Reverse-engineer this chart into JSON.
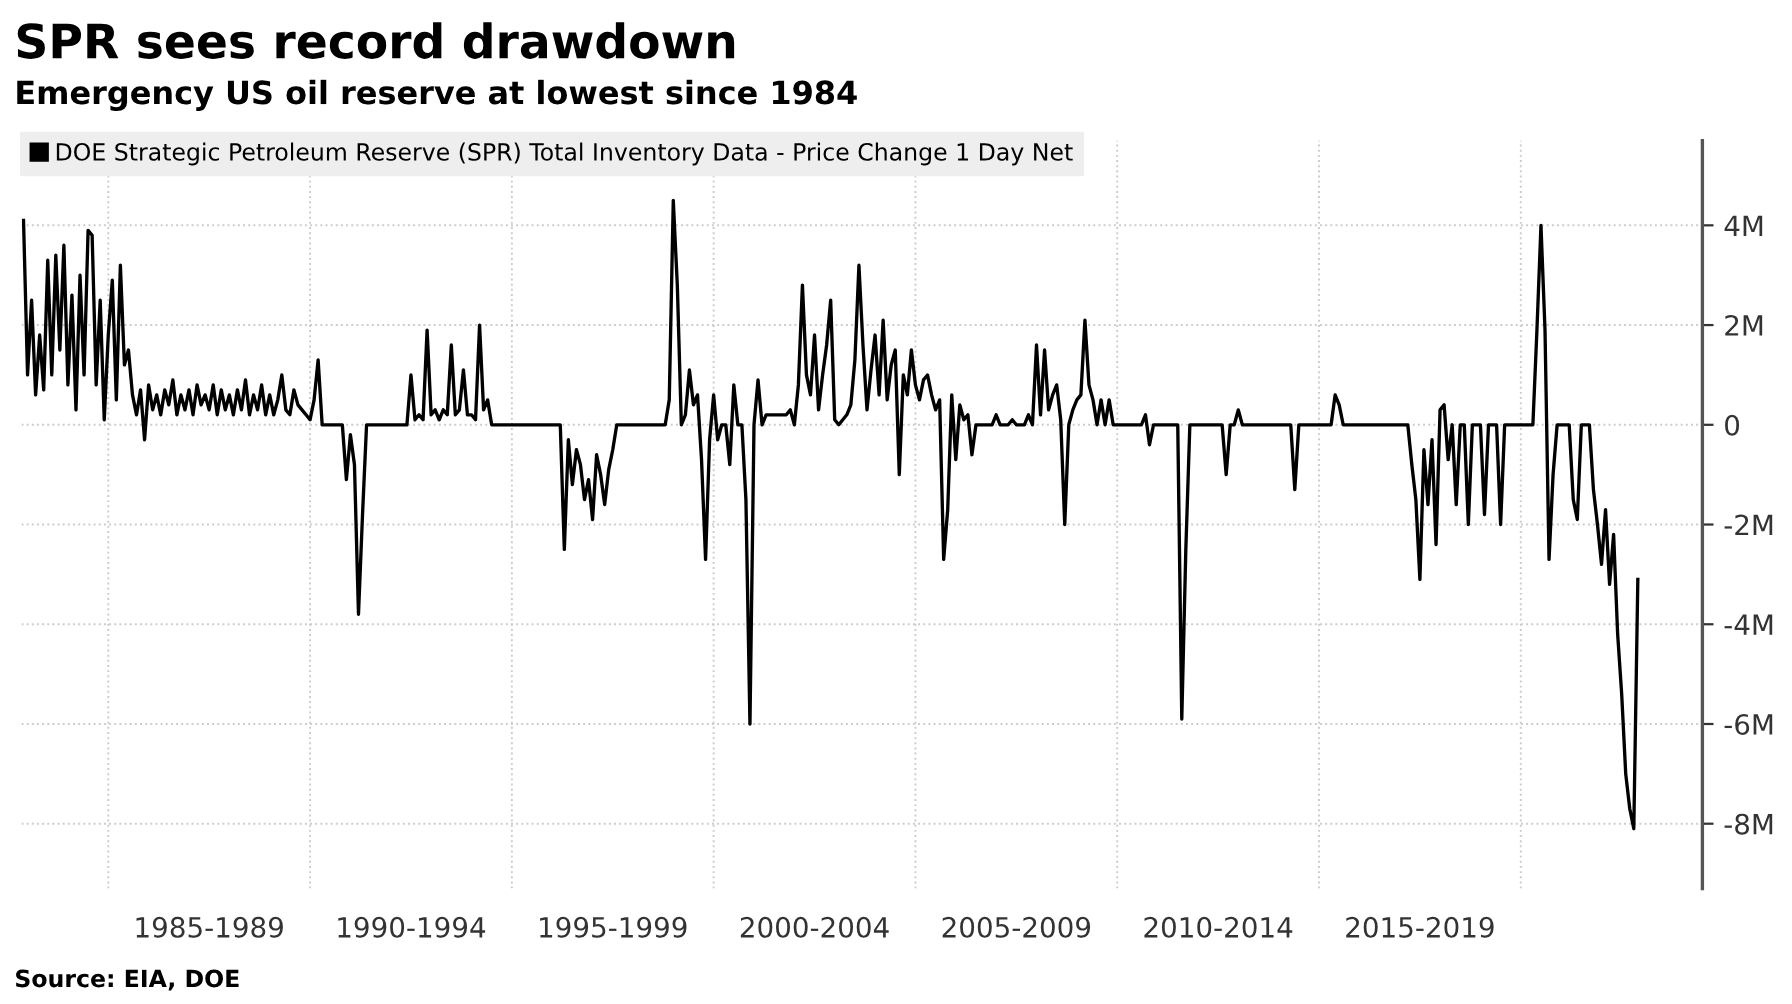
{
  "chart_data": {
    "type": "line",
    "title": "SPR sees record drawdown",
    "subtitle": "Emergency US oil reserve at lowest since 1984",
    "annotations": [
      "Source: EIA, DOE"
    ],
    "legend": "top left",
    "grid": true,
    "line_style": "solid",
    "marker": "none",
    "categories": [
      null,
      null,
      null,
      null,
      null,
      null,
      null,
      null,
      null,
      null,
      null,
      null,
      null,
      null,
      null,
      null,
      null,
      null,
      null,
      null,
      null,
      null,
      null,
      null,
      null,
      null,
      null,
      null,
      null,
      null,
      null,
      null,
      null,
      null,
      null,
      null,
      null,
      null,
      null,
      null,
      null,
      null,
      null,
      null,
      null,
      null,
      "1985-1989",
      null,
      null,
      null,
      null,
      null,
      null,
      null,
      null,
      null,
      null,
      null,
      null,
      null,
      null,
      null,
      null,
      null,
      null,
      null,
      null,
      null,
      null,
      null,
      null,
      null,
      null,
      null,
      null,
      null,
      null,
      null,
      null,
      null,
      null,
      null,
      null,
      null,
      null,
      null,
      null,
      null,
      null,
      null,
      null,
      null,
      null,
      null,
      null,
      null,
      "1990-1994",
      null,
      null,
      null,
      null,
      null,
      null,
      null,
      null,
      null,
      null,
      null,
      null,
      null,
      null,
      null,
      null,
      null,
      null,
      null,
      null,
      null,
      null,
      null,
      null,
      null,
      null,
      null,
      null,
      null,
      null,
      null,
      null,
      null,
      null,
      null,
      null,
      null,
      null,
      null,
      null,
      null,
      null,
      null,
      null,
      null,
      null,
      null,
      null,
      null,
      "1995-1999",
      null,
      null,
      null,
      null,
      null,
      null,
      null,
      null,
      null,
      null,
      null,
      null,
      null,
      null,
      null,
      null,
      null,
      null,
      null,
      null,
      null,
      null,
      null,
      null,
      null,
      null,
      null,
      null,
      null,
      null,
      null,
      null,
      null,
      null,
      null,
      null,
      null,
      null,
      null,
      null,
      null,
      null,
      null,
      null,
      null,
      null,
      null,
      null,
      null,
      "2000-2004",
      null,
      null,
      null,
      null,
      null,
      null,
      null,
      null,
      null,
      null,
      null,
      null,
      null,
      null,
      null,
      null,
      null,
      null,
      null,
      null,
      null,
      null,
      null,
      null,
      null,
      null,
      null,
      null,
      null,
      null,
      null,
      null,
      null,
      null,
      null,
      null,
      null,
      null,
      null,
      null,
      null,
      null,
      null,
      null,
      null,
      null,
      null,
      null,
      null,
      "2005-2009",
      null,
      null,
      null,
      null,
      null,
      null,
      null,
      null,
      null,
      null,
      null,
      null,
      null,
      null,
      null,
      null,
      null,
      null,
      null,
      null,
      null,
      null,
      null,
      null,
      null,
      null,
      null,
      null,
      null,
      null,
      null,
      null,
      null,
      null,
      null,
      null,
      null,
      null,
      null,
      null,
      null,
      null,
      null,
      null,
      null,
      null,
      null,
      null,
      null,
      "2010-2014",
      null,
      null,
      null,
      null,
      null,
      null,
      null,
      null,
      null,
      null,
      null,
      null,
      null,
      null,
      null,
      null,
      null,
      null,
      null,
      null,
      null,
      null,
      null,
      null,
      null,
      null,
      null,
      null,
      null,
      null,
      null,
      null,
      null,
      null,
      null,
      null,
      null,
      null,
      null,
      null,
      null,
      null,
      null,
      null,
      null,
      null,
      null,
      null,
      null,
      "2015-2019",
      null,
      null,
      null,
      null,
      null,
      null,
      null,
      null,
      null,
      null,
      null,
      null,
      null,
      null,
      null,
      null,
      null,
      null,
      null,
      null,
      null,
      null,
      null,
      null,
      null,
      null,
      null,
      null,
      null,
      null,
      null,
      null,
      null,
      null,
      null,
      null,
      null,
      null,
      null,
      null,
      null,
      null,
      null,
      null,
      null,
      null,
      null,
      null,
      null,
      null,
      null,
      null,
      null,
      null
    ],
    "ylim": [
      -9.3,
      5.7
    ],
    "yticks": [
      {
        "value": 4,
        "label": "4M"
      },
      {
        "value": 2,
        "label": "2M"
      },
      0,
      {
        "value": -2,
        "label": "-2M"
      },
      {
        "value": -4,
        "label": "-4M"
      },
      {
        "value": -6,
        "label": "-6M"
      },
      {
        "value": -8,
        "label": "-8M"
      }
    ],
    "series": [
      {
        "name": "DOE Strategic Petroleum Reserve (SPR) Total Inventory Data - Price Change 1 Day Net",
        "color": "#000000",
        "values": [
          4.1,
          1.0,
          2.5,
          0.6,
          1.8,
          0.7,
          3.3,
          1.0,
          3.4,
          1.5,
          3.6,
          0.8,
          2.6,
          0.3,
          3.0,
          1.0,
          3.9,
          3.8,
          0.8,
          2.5,
          0.1,
          1.8,
          2.9,
          0.5,
          3.2,
          1.2,
          1.5,
          0.6,
          0.2,
          0.7,
          -0.3,
          0.8,
          0.3,
          0.6,
          0.2,
          0.7,
          0.4,
          0.9,
          0.2,
          0.6,
          0.3,
          0.7,
          0.2,
          0.8,
          0.4,
          0.6,
          0.3,
          0.8,
          0.2,
          0.7,
          0.3,
          0.6,
          0.2,
          0.7,
          0.3,
          0.9,
          0.2,
          0.6,
          0.3,
          0.8,
          0.2,
          0.6,
          0.2,
          0.5,
          1.0,
          0.3,
          0.2,
          0.7,
          0.4,
          0.3,
          0.2,
          0.1,
          0.5,
          1.3,
          0,
          0,
          0,
          0,
          0,
          0,
          -1.1,
          -0.2,
          -0.8,
          -3.8,
          -1.8,
          0,
          0,
          0,
          0,
          0,
          0,
          0,
          0,
          0,
          0,
          0,
          1.0,
          0.1,
          0.2,
          0.1,
          1.9,
          0.2,
          0.3,
          0.1,
          0.3,
          0.2,
          1.6,
          0.2,
          0.3,
          1.1,
          0.2,
          0.2,
          0.1,
          2.0,
          0.3,
          0.5,
          0,
          0,
          0,
          0,
          0,
          0,
          0,
          0,
          0,
          0,
          0,
          0,
          0,
          0,
          0,
          0,
          0,
          0,
          -2.5,
          -0.3,
          -1.2,
          -0.5,
          -0.8,
          -1.5,
          -1.1,
          -1.9,
          -0.6,
          -1.0,
          -1.6,
          -0.9,
          -0.5,
          0,
          0,
          0,
          0,
          0,
          0,
          0,
          0,
          0,
          0,
          0,
          0,
          0,
          0.5,
          4.5,
          2.8,
          0,
          0.2,
          1.1,
          0.4,
          0.6,
          -0.7,
          -2.7,
          -0.3,
          0.6,
          -0.3,
          0,
          0,
          -0.8,
          0.8,
          0,
          0,
          -1.5,
          -6.0,
          0,
          0.9,
          0,
          0.2,
          0.2,
          0.2,
          0.2,
          0.2,
          0.2,
          0.3,
          0,
          0.8,
          2.8,
          1.0,
          0.6,
          1.8,
          0.3,
          1.0,
          1.6,
          2.5,
          0.1,
          0,
          0.1,
          0.2,
          0.4,
          1.3,
          3.2,
          1.6,
          0.3,
          1.1,
          1.8,
          0.6,
          2.1,
          0.5,
          1.2,
          1.5,
          -1.0,
          1.0,
          0.6,
          1.5,
          0.8,
          0.5,
          0.9,
          1.0,
          0.6,
          0.3,
          0.5,
          -2.7,
          -1.7,
          0.6,
          -0.7,
          0.4,
          0.1,
          0.2,
          -0.6,
          0,
          0,
          0,
          0,
          0,
          0.2,
          0,
          0,
          0,
          0.1,
          0,
          0,
          0,
          0.2,
          0,
          1.6,
          0.2,
          1.5,
          0.3,
          0.6,
          0.8,
          0.1,
          -2.0,
          0,
          0.3,
          0.5,
          0.6,
          2.1,
          0.8,
          0.5,
          0,
          0.5,
          0,
          0.5,
          0,
          0,
          0,
          0,
          0,
          0,
          0,
          0,
          0.2,
          -0.4,
          0,
          0,
          0,
          0,
          0,
          0,
          0,
          -5.9,
          -2.5,
          0,
          0,
          0,
          0,
          0,
          0,
          0,
          0,
          0,
          -1.0,
          0,
          0,
          0.3,
          0,
          0,
          0,
          0,
          0,
          0,
          0,
          0,
          0,
          0,
          0,
          0,
          0,
          -1.3,
          0,
          0,
          0,
          0,
          0,
          0,
          0,
          0,
          0,
          0.6,
          0.4,
          0,
          0,
          0,
          0,
          0,
          0,
          0,
          0,
          0,
          0,
          0,
          0,
          0,
          0,
          0,
          0,
          0,
          -0.8,
          -1.5,
          -3.1,
          -0.5,
          -1.6,
          -0.3,
          -2.4,
          0.3,
          0.4,
          -0.7,
          0,
          -1.6,
          0,
          0,
          -2.0,
          0,
          0,
          0,
          -1.8,
          0,
          0,
          0,
          -2.0,
          0,
          0,
          0,
          0,
          0,
          0,
          0,
          0,
          1.9,
          4.0,
          1.9,
          -2.7,
          -1.0,
          0,
          0,
          0,
          0,
          -1.5,
          -1.9,
          0,
          0,
          0,
          -1.3,
          -2.0,
          -2.8,
          -1.7,
          -3.2,
          -2.2,
          -4.2,
          -5.4,
          -7.0,
          -7.7,
          -8.1,
          -3.1
        ]
      }
    ]
  }
}
